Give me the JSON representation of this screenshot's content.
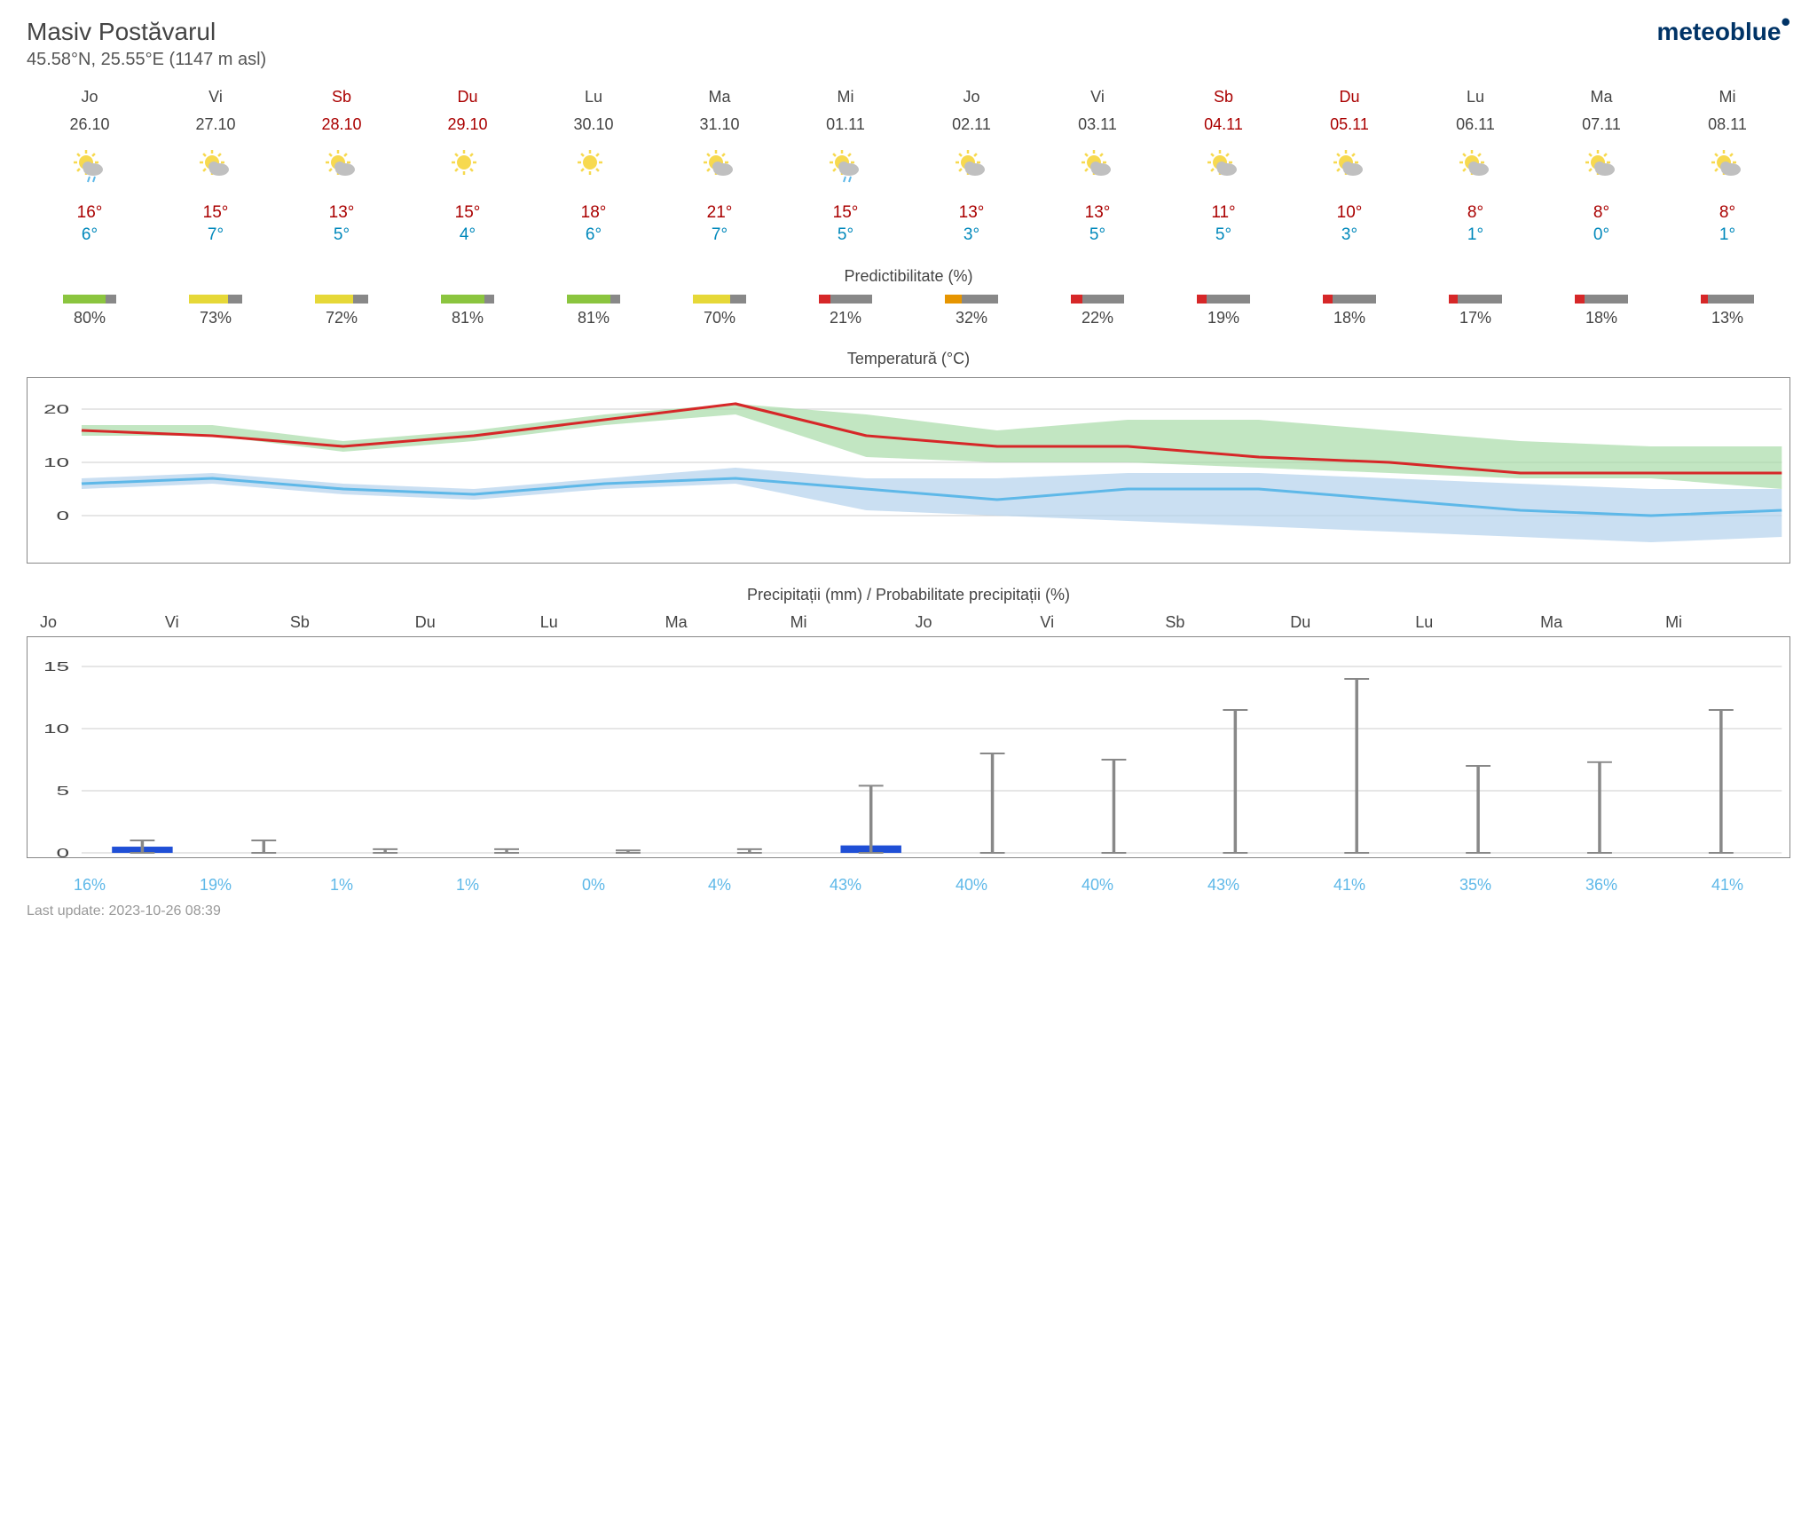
{
  "location": {
    "name": "Masiv Postăvarul",
    "coords": "45.58°N, 25.55°E (1147 m asl)"
  },
  "brand": "meteoblue",
  "last_update_label": "Last update: 2023-10-26 08:39",
  "section_titles": {
    "predictability": "Predictibilitate (%)",
    "temperature": "Temperatură (°C)",
    "precipitation": "Precipitații (mm) / Probabilitate precipitații (%)"
  },
  "days": [
    {
      "dow": "Jo",
      "date": "26.10",
      "weekend": false,
      "icon": "rain",
      "high": "16°",
      "low": "6°",
      "predict": 80,
      "pred_color": "#8bc53f",
      "precip": 0.5,
      "precip_err": 1.0,
      "precip_prob": "16%"
    },
    {
      "dow": "Vi",
      "date": "27.10",
      "weekend": false,
      "icon": "cloudy",
      "high": "15°",
      "low": "7°",
      "predict": 73,
      "pred_color": "#e6d838",
      "precip": 0,
      "precip_err": 1.0,
      "precip_prob": "19%"
    },
    {
      "dow": "Sb",
      "date": "28.10",
      "weekend": true,
      "icon": "partly",
      "high": "13°",
      "low": "5°",
      "predict": 72,
      "pred_color": "#e6d838",
      "precip": 0,
      "precip_err": 0.3,
      "precip_prob": "1%"
    },
    {
      "dow": "Du",
      "date": "29.10",
      "weekend": true,
      "icon": "sun",
      "high": "15°",
      "low": "4°",
      "predict": 81,
      "pred_color": "#8bc53f",
      "precip": 0,
      "precip_err": 0.3,
      "precip_prob": "1%"
    },
    {
      "dow": "Lu",
      "date": "30.10",
      "weekend": false,
      "icon": "sun",
      "high": "18°",
      "low": "6°",
      "predict": 81,
      "pred_color": "#8bc53f",
      "precip": 0,
      "precip_err": 0.2,
      "precip_prob": "0%"
    },
    {
      "dow": "Ma",
      "date": "31.10",
      "weekend": false,
      "icon": "partly",
      "high": "21°",
      "low": "7°",
      "predict": 70,
      "pred_color": "#e6d838",
      "precip": 0,
      "precip_err": 0.3,
      "precip_prob": "4%"
    },
    {
      "dow": "Mi",
      "date": "01.11",
      "weekend": false,
      "icon": "rain",
      "high": "15°",
      "low": "5°",
      "predict": 21,
      "pred_color": "#d62728",
      "precip": 0.6,
      "precip_err": 5.4,
      "precip_prob": "43%"
    },
    {
      "dow": "Jo",
      "date": "02.11",
      "weekend": false,
      "icon": "partly",
      "high": "13°",
      "low": "3°",
      "predict": 32,
      "pred_color": "#e69500",
      "precip": 0,
      "precip_err": 8.0,
      "precip_prob": "40%"
    },
    {
      "dow": "Vi",
      "date": "03.11",
      "weekend": false,
      "icon": "cloudy",
      "high": "13°",
      "low": "5°",
      "predict": 22,
      "pred_color": "#d62728",
      "precip": 0,
      "precip_err": 7.5,
      "precip_prob": "40%"
    },
    {
      "dow": "Sb",
      "date": "04.11",
      "weekend": true,
      "icon": "cloudy",
      "high": "11°",
      "low": "5°",
      "predict": 19,
      "pred_color": "#d62728",
      "precip": 0,
      "precip_err": 11.5,
      "precip_prob": "43%"
    },
    {
      "dow": "Du",
      "date": "05.11",
      "weekend": true,
      "icon": "cloudy",
      "high": "10°",
      "low": "3°",
      "predict": 18,
      "pred_color": "#d62728",
      "precip": 0,
      "precip_err": 14.0,
      "precip_prob": "41%"
    },
    {
      "dow": "Lu",
      "date": "06.11",
      "weekend": false,
      "icon": "cloudy",
      "high": "8°",
      "low": "1°",
      "predict": 17,
      "pred_color": "#d62728",
      "precip": 0,
      "precip_err": 7.0,
      "precip_prob": "35%"
    },
    {
      "dow": "Ma",
      "date": "07.11",
      "weekend": false,
      "icon": "partly",
      "high": "8°",
      "low": "0°",
      "predict": 18,
      "pred_color": "#d62728",
      "precip": 0,
      "precip_err": 7.3,
      "precip_prob": "36%"
    },
    {
      "dow": "Mi",
      "date": "08.11",
      "weekend": false,
      "icon": "cloudy",
      "high": "8°",
      "low": "1°",
      "predict": 13,
      "pred_color": "#d62728",
      "precip": 0,
      "precip_err": 11.5,
      "precip_prob": "41%"
    }
  ],
  "temp_chart": {
    "ylim": [
      -8,
      25
    ],
    "yticks": [
      0,
      10,
      20
    ],
    "grid_color": "#cccccc",
    "high_line_color": "#d62728",
    "low_line_color": "#5eb8e8",
    "high_band_color": "#a8dba8",
    "low_band_color": "#b3d1ed",
    "line_width": 3,
    "highs": [
      16,
      15,
      13,
      15,
      18,
      21,
      15,
      13,
      13,
      11,
      10,
      8,
      8,
      8
    ],
    "lows": [
      6,
      7,
      5,
      4,
      6,
      7,
      5,
      3,
      5,
      5,
      3,
      1,
      0,
      1
    ],
    "high_band_upper": [
      17,
      17,
      14,
      16,
      19,
      21,
      19,
      16,
      18,
      18,
      16,
      14,
      13,
      13
    ],
    "high_band_lower": [
      15,
      15,
      12,
      14,
      17,
      19,
      11,
      10,
      10,
      9,
      8,
      7,
      7,
      5
    ],
    "low_band_upper": [
      7,
      8,
      6,
      5,
      7,
      9,
      7,
      7,
      8,
      8,
      7,
      6,
      5,
      5
    ],
    "low_band_lower": [
      5,
      6,
      4,
      3,
      5,
      6,
      1,
      0,
      -1,
      -2,
      -3,
      -4,
      -5,
      -4
    ]
  },
  "precip_chart": {
    "ylim": [
      0,
      17
    ],
    "yticks": [
      0,
      5,
      10,
      15
    ],
    "grid_color": "#cccccc",
    "bar_color": "#1f4fd6",
    "err_color": "#888888"
  }
}
